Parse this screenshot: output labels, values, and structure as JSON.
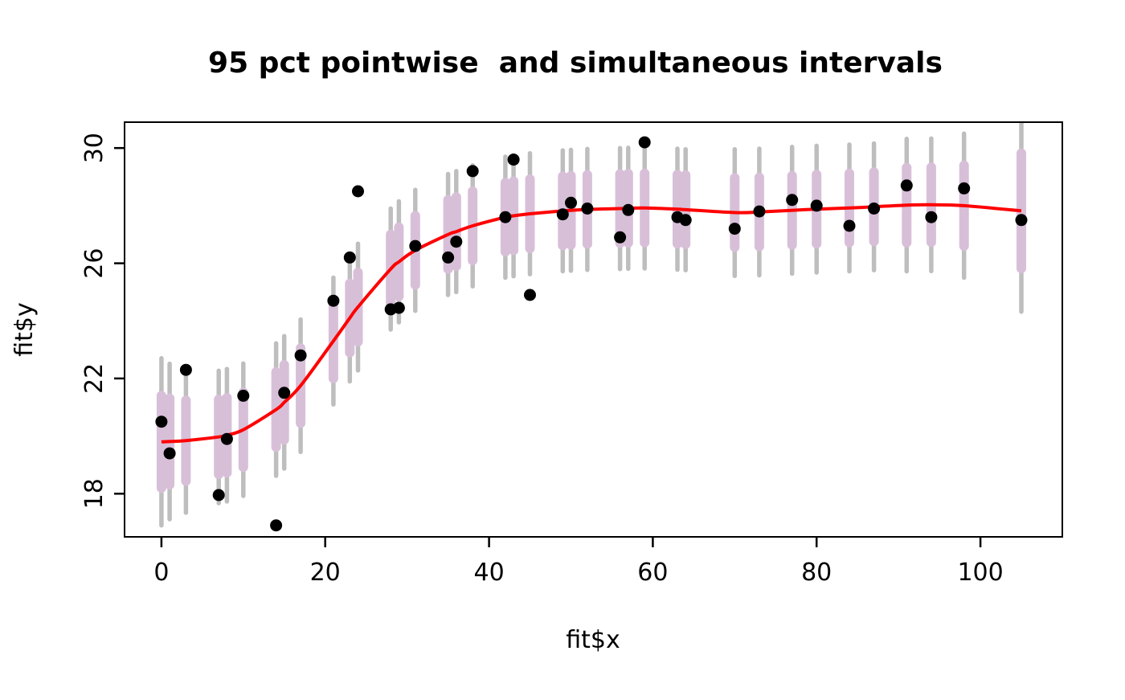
{
  "chart_data": {
    "type": "scatter",
    "title": "95 pct pointwise  and simultaneous intervals",
    "xlabel": "fit$x",
    "ylabel": "fit$y",
    "xlim": [
      -4.5,
      110
    ],
    "ylim": [
      16.5,
      30.9
    ],
    "x_ticks": [
      0,
      20,
      40,
      60,
      80,
      100
    ],
    "y_ticks": [
      18,
      22,
      26,
      30
    ],
    "legend": "none",
    "grid": false,
    "colors": {
      "background": "#FFFFFF",
      "axis": "#000000",
      "points": "#000000",
      "fit_line": "#FF0000",
      "pointwise_interval": "#D8BFD8",
      "simultaneous_interval": "#BEBEBE"
    },
    "series_notes": {
      "points": "observed data (fit$x, fit$y)",
      "fit": "red smooth fitted curve",
      "pw": "pointwise 95% half-width (thick mauve bars)",
      "sw": "simultaneous 95% half-width (thin gray bars)"
    },
    "points": [
      {
        "x": 0,
        "y": 20.5,
        "fit": 19.8,
        "pw": 1.6,
        "sw": 2.9
      },
      {
        "x": 1,
        "y": 19.4,
        "fit": 19.81,
        "pw": 1.5,
        "sw": 2.7
      },
      {
        "x": 3,
        "y": 22.3,
        "fit": 19.84,
        "pw": 1.4,
        "sw": 2.5
      },
      {
        "x": 7,
        "y": 17.95,
        "fit": 19.97,
        "pw": 1.3,
        "sw": 2.3
      },
      {
        "x": 8,
        "y": 19.9,
        "fit": 20.03,
        "pw": 1.3,
        "sw": 2.3
      },
      {
        "x": 10,
        "y": 21.4,
        "fit": 20.22,
        "pw": 1.3,
        "sw": 2.3
      },
      {
        "x": 14,
        "y": 16.9,
        "fit": 20.92,
        "pw": 1.3,
        "sw": 2.3
      },
      {
        "x": 15,
        "y": 21.5,
        "fit": 21.17,
        "pw": 1.3,
        "sw": 2.3
      },
      {
        "x": 17,
        "y": 22.8,
        "fit": 21.75,
        "pw": 1.3,
        "sw": 2.3
      },
      {
        "x": 21,
        "y": 24.7,
        "fit": 23.3,
        "pw": 1.3,
        "sw": 2.2
      },
      {
        "x": 23,
        "y": 26.2,
        "fit": 24.1,
        "pw": 1.2,
        "sw": 2.2
      },
      {
        "x": 24,
        "y": 28.5,
        "fit": 24.48,
        "pw": 1.2,
        "sw": 2.2
      },
      {
        "x": 28,
        "y": 24.4,
        "fit": 25.8,
        "pw": 1.2,
        "sw": 2.1
      },
      {
        "x": 29,
        "y": 24.45,
        "fit": 26.05,
        "pw": 1.2,
        "sw": 2.1
      },
      {
        "x": 31,
        "y": 26.6,
        "fit": 26.45,
        "pw": 1.2,
        "sw": 2.1
      },
      {
        "x": 35,
        "y": 26.2,
        "fit": 27.0,
        "pw": 1.2,
        "sw": 2.1
      },
      {
        "x": 36,
        "y": 26.75,
        "fit": 27.1,
        "pw": 1.2,
        "sw": 2.1
      },
      {
        "x": 38,
        "y": 29.2,
        "fit": 27.3,
        "pw": 1.2,
        "sw": 2.1
      },
      {
        "x": 42,
        "y": 27.6,
        "fit": 27.6,
        "pw": 1.2,
        "sw": 2.1
      },
      {
        "x": 43,
        "y": 29.6,
        "fit": 27.65,
        "pw": 1.2,
        "sw": 2.1
      },
      {
        "x": 45,
        "y": 24.9,
        "fit": 27.72,
        "pw": 1.2,
        "sw": 2.1
      },
      {
        "x": 49,
        "y": 27.7,
        "fit": 27.82,
        "pw": 1.2,
        "sw": 2.1
      },
      {
        "x": 50,
        "y": 28.1,
        "fit": 27.84,
        "pw": 1.2,
        "sw": 2.1
      },
      {
        "x": 52,
        "y": 27.9,
        "fit": 27.87,
        "pw": 1.2,
        "sw": 2.1
      },
      {
        "x": 56,
        "y": 26.9,
        "fit": 27.9,
        "pw": 1.2,
        "sw": 2.1
      },
      {
        "x": 57,
        "y": 27.85,
        "fit": 27.91,
        "pw": 1.2,
        "sw": 2.1
      },
      {
        "x": 59,
        "y": 30.2,
        "fit": 27.92,
        "pw": 1.2,
        "sw": 2.1
      },
      {
        "x": 63,
        "y": 27.6,
        "fit": 27.88,
        "pw": 1.2,
        "sw": 2.1
      },
      {
        "x": 64,
        "y": 27.5,
        "fit": 27.86,
        "pw": 1.2,
        "sw": 2.1
      },
      {
        "x": 70,
        "y": 27.2,
        "fit": 27.76,
        "pw": 1.2,
        "sw": 2.2
      },
      {
        "x": 73,
        "y": 27.8,
        "fit": 27.78,
        "pw": 1.2,
        "sw": 2.2
      },
      {
        "x": 77,
        "y": 28.2,
        "fit": 27.84,
        "pw": 1.2,
        "sw": 2.2
      },
      {
        "x": 80,
        "y": 28.0,
        "fit": 27.88,
        "pw": 1.2,
        "sw": 2.2
      },
      {
        "x": 84,
        "y": 27.3,
        "fit": 27.92,
        "pw": 1.2,
        "sw": 2.2
      },
      {
        "x": 87,
        "y": 27.9,
        "fit": 27.96,
        "pw": 1.2,
        "sw": 2.2
      },
      {
        "x": 91,
        "y": 28.7,
        "fit": 28.02,
        "pw": 1.3,
        "sw": 2.3
      },
      {
        "x": 94,
        "y": 27.6,
        "fit": 28.03,
        "pw": 1.3,
        "sw": 2.3
      },
      {
        "x": 98,
        "y": 28.6,
        "fit": 28.0,
        "pw": 1.4,
        "sw": 2.5
      },
      {
        "x": 105,
        "y": 27.5,
        "fit": 27.82,
        "pw": 2.0,
        "sw": 3.5
      }
    ]
  }
}
